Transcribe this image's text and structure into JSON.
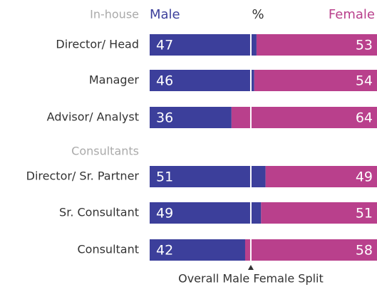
{
  "chart_data": {
    "type": "bar",
    "orientation": "horizontal",
    "stacked": true,
    "unit_label": "%",
    "xlim": [
      0,
      100
    ],
    "groups": [
      {
        "name": "In-house",
        "size": 3
      },
      {
        "name": "Consultants",
        "size": 3
      }
    ],
    "categories": [
      "Director/ Head",
      "Manager",
      "Advisor/ Analyst",
      "Director/ Sr. Partner",
      "Sr. Consultant",
      "Consultant"
    ],
    "series": [
      {
        "name": "Male",
        "color": "#3c3f9b",
        "values": [
          47,
          46,
          36,
          51,
          49,
          42
        ]
      },
      {
        "name": "Female",
        "color": "#b9408c",
        "values": [
          53,
          54,
          64,
          49,
          51,
          58
        ]
      }
    ],
    "reference_line": {
      "value": 44.5,
      "label": "Overall Male Female Split"
    }
  }
}
